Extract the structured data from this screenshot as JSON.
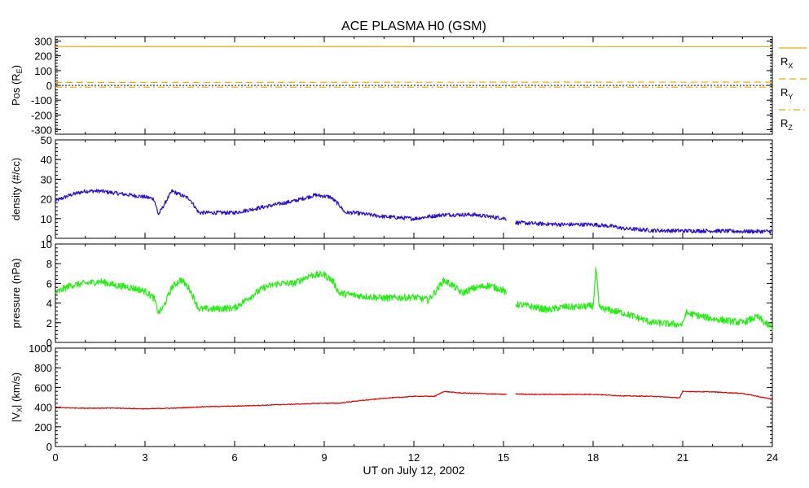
{
  "chart_data": {
    "type": "line",
    "title": "ACE PLASMA H0 (GSM)",
    "xlabel": "UT on July 12, 2002",
    "x_ticks": [
      "0",
      "3",
      "6",
      "9",
      "12",
      "15",
      "18",
      "21",
      "24"
    ],
    "xlim": [
      0,
      24
    ],
    "panels": [
      {
        "id": "pos",
        "ylabel_main": "Pos (R",
        "ylabel_sub": "E",
        "ylabel_end": ")",
        "ylim": [
          -330,
          330
        ],
        "y_ticks": [
          "300",
          "200",
          "100",
          "0",
          "-100",
          "-200",
          "-300"
        ],
        "y_tick_values": [
          300,
          200,
          100,
          0,
          -100,
          -200,
          -300
        ],
        "zero_line": true,
        "legend": [
          {
            "main": "R",
            "sub": "X",
            "color": "#f0a800",
            "dash": "solid"
          },
          {
            "main": "R",
            "sub": "Y",
            "color": "#f0a800",
            "dash": "dash"
          },
          {
            "main": "R",
            "sub": "Z",
            "color": "#f0a800",
            "dash": "dashdot"
          }
        ],
        "series": [
          {
            "name": "RX",
            "color": "#f0a800",
            "dash": "solid",
            "mode": "flat",
            "points": [
              [
                0,
                263
              ],
              [
                24,
                262
              ]
            ]
          },
          {
            "name": "RY",
            "color": "#f0a800",
            "dash": "dash",
            "mode": "flat",
            "points": [
              [
                0,
                20
              ],
              [
                24,
                22
              ]
            ]
          },
          {
            "name": "RZ",
            "color": "#f0a800",
            "dash": "dashdot",
            "mode": "flat",
            "points": [
              [
                0,
                -12
              ],
              [
                24,
                -12
              ]
            ]
          }
        ]
      },
      {
        "id": "density",
        "ylabel_main": "density (#/cc)",
        "ylim": [
          0,
          50
        ],
        "y_ticks": [
          "50",
          "40",
          "30",
          "20",
          "10",
          "0"
        ],
        "y_tick_values": [
          50,
          40,
          30,
          20,
          10,
          0
        ],
        "series": [
          {
            "name": "density",
            "color": "#2a0fd0",
            "noise": 1.0,
            "mode": "noisy",
            "segments": [
              [
                [
                  0,
                  19
                ],
                [
                  0.5,
                  22
                ],
                [
                  1,
                  24
                ],
                [
                  1.5,
                  24
                ],
                [
                  2,
                  23
                ],
                [
                  2.5,
                  22
                ],
                [
                  3,
                  21
                ],
                [
                  3.3,
                  20
                ],
                [
                  3.45,
                  12
                ],
                [
                  3.6,
                  16
                ],
                [
                  3.9,
                  24
                ],
                [
                  4.2,
                  22
                ],
                [
                  4.5,
                  20
                ],
                [
                  4.8,
                  13
                ],
                [
                  5,
                  13
                ],
                [
                  6,
                  13
                ],
                [
                  7,
                  16
                ],
                [
                  8,
                  19
                ],
                [
                  8.7,
                  22
                ],
                [
                  9.2,
                  21
                ],
                [
                  9.5,
                  17
                ],
                [
                  9.7,
                  13
                ],
                [
                  10,
                  13
                ],
                [
                  11,
                  11
                ],
                [
                  12,
                  10
                ],
                [
                  13,
                  12
                ],
                [
                  14,
                  12
                ],
                [
                  15.1,
                  10
                ]
              ],
              [
                [
                  15.4,
                  8
                ],
                [
                  16,
                  7.5
                ],
                [
                  17,
                  7
                ],
                [
                  18,
                  7
                ],
                [
                  18.7,
                  6
                ],
                [
                  19,
                  5
                ],
                [
                  20,
                  4
                ],
                [
                  21,
                  3.8
                ],
                [
                  22,
                  3.8
                ],
                [
                  23,
                  3.5
                ],
                [
                  24,
                  3.5
                ]
              ]
            ]
          }
        ]
      },
      {
        "id": "pressure",
        "ylabel_main": "pressure (nPa)",
        "ylim": [
          0,
          10
        ],
        "y_ticks": [
          "10",
          "8",
          "6",
          "4",
          "2",
          "0"
        ],
        "y_tick_values": [
          10,
          8,
          6,
          4,
          2,
          0
        ],
        "series": [
          {
            "name": "pressure",
            "color": "#22ee10",
            "noise": 0.35,
            "mode": "noisy",
            "segments": [
              [
                [
                  0,
                  5
                ],
                [
                  0.5,
                  5.8
                ],
                [
                  1,
                  6
                ],
                [
                  1.5,
                  6.2
                ],
                [
                  2,
                  5.8
                ],
                [
                  2.5,
                  5.6
                ],
                [
                  3,
                  5.2
                ],
                [
                  3.3,
                  4.5
                ],
                [
                  3.45,
                  3
                ],
                [
                  3.6,
                  3.5
                ],
                [
                  3.9,
                  5.6
                ],
                [
                  4.2,
                  6.4
                ],
                [
                  4.5,
                  5.4
                ],
                [
                  4.8,
                  3.4
                ],
                [
                  5.2,
                  3.4
                ],
                [
                  6,
                  3.5
                ],
                [
                  6.5,
                  4.6
                ],
                [
                  7,
                  5.6
                ],
                [
                  7.5,
                  6
                ],
                [
                  8,
                  6
                ],
                [
                  8.5,
                  6.8
                ],
                [
                  9,
                  6.9
                ],
                [
                  9.3,
                  6.2
                ],
                [
                  9.5,
                  5
                ],
                [
                  10,
                  4.8
                ],
                [
                  11,
                  4.5
                ],
                [
                  12,
                  4.6
                ],
                [
                  12.5,
                  4.3
                ],
                [
                  13,
                  6.3
                ],
                [
                  13.3,
                  5.8
                ],
                [
                  13.6,
                  5
                ],
                [
                  14,
                  5.5
                ],
                [
                  14.5,
                  5.8
                ],
                [
                  15,
                  5.3
                ],
                [
                  15.1,
                  4.8
                ]
              ],
              [
                [
                  15.4,
                  3.9
                ],
                [
                  16,
                  3.6
                ],
                [
                  16.5,
                  3.3
                ],
                [
                  17,
                  3.6
                ],
                [
                  17.5,
                  3.6
                ],
                [
                  18,
                  3.7
                ],
                [
                  18.1,
                  7.6
                ],
                [
                  18.2,
                  3.5
                ],
                [
                  19,
                  3
                ],
                [
                  20,
                  2
                ],
                [
                  21,
                  1.8
                ],
                [
                  21.1,
                  3
                ],
                [
                  22,
                  2.4
                ],
                [
                  23,
                  2
                ],
                [
                  23.5,
                  2.6
                ],
                [
                  24,
                  1.4
                ]
              ]
            ]
          }
        ]
      },
      {
        "id": "vx",
        "ylabel_main": "|V",
        "ylabel_sub": "X",
        "ylabel_end": "| (km/s)",
        "ylim": [
          0,
          1000
        ],
        "y_ticks": [
          "1000",
          "800",
          "600",
          "400",
          "200",
          "0"
        ],
        "y_tick_values": [
          1000,
          800,
          600,
          400,
          200,
          0
        ],
        "series": [
          {
            "name": "vx",
            "color": "#dd0000",
            "noise": 4,
            "mode": "noisy",
            "segments": [
              [
                [
                  0,
                  395
                ],
                [
                  1,
                  390
                ],
                [
                  2,
                  390
                ],
                [
                  3,
                  383
                ],
                [
                  4,
                  390
                ],
                [
                  5,
                  405
                ],
                [
                  6,
                  410
                ],
                [
                  7,
                  420
                ],
                [
                  8,
                  430
                ],
                [
                  9,
                  440
                ],
                [
                  9.5,
                  440
                ],
                [
                  10,
                  460
                ],
                [
                  11,
                  490
                ],
                [
                  12,
                  510
                ],
                [
                  12.7,
                  510
                ],
                [
                  13,
                  560
                ],
                [
                  13.5,
                  545
                ],
                [
                  14,
                  540
                ],
                [
                  15.1,
                  530
                ]
              ],
              [
                [
                  15.4,
                  535
                ],
                [
                  16,
                  530
                ],
                [
                  17,
                  530
                ],
                [
                  18,
                  530
                ],
                [
                  19,
                  515
                ],
                [
                  20,
                  510
                ],
                [
                  20.9,
                  495
                ],
                [
                  21,
                  560
                ],
                [
                  22,
                  555
                ],
                [
                  23,
                  540
                ],
                [
                  24,
                  480
                ]
              ]
            ]
          }
        ]
      }
    ]
  }
}
